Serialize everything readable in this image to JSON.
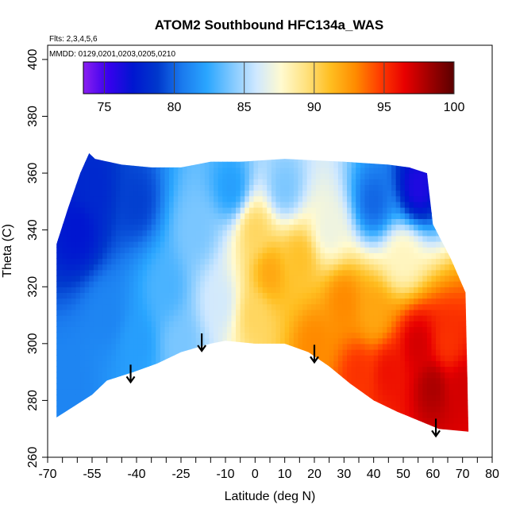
{
  "chart_data": {
    "type": "heatmap",
    "title": "ATOM2 Southbound HFC134a_WAS",
    "subtitle_flights": "Flts: 2,3,4,5,6",
    "subtitle_dates": "MMDD: 0129,0201,0203,0205,0210",
    "xlabel": "Latitude (deg N)",
    "ylabel": "Theta (C)",
    "xlim": [
      -70,
      80
    ],
    "ylim": [
      260,
      405
    ],
    "x_ticks": [
      "-70",
      "-55",
      "-40",
      "-25",
      "-10",
      "0",
      "10",
      "20",
      "30",
      "40",
      "50",
      "60",
      "70",
      "80"
    ],
    "x_tick_values": [
      -70,
      -55,
      -40,
      -25,
      -10,
      0,
      10,
      20,
      30,
      40,
      50,
      60,
      70,
      80
    ],
    "x_minor_ticks": [
      -65,
      -60,
      -50,
      -45,
      -35,
      -30,
      -20,
      -15,
      -5,
      5,
      15,
      25,
      35,
      45,
      55,
      65,
      75
    ],
    "y_ticks": [
      "260",
      "280",
      "300",
      "320",
      "340",
      "360",
      "380",
      "400"
    ],
    "y_tick_values": [
      260,
      280,
      300,
      320,
      340,
      360,
      380,
      400
    ],
    "colorbar": {
      "ticks": [
        "75",
        "80",
        "85",
        "90",
        "95",
        "100"
      ],
      "tick_values": [
        75,
        80,
        85,
        90,
        95,
        100
      ],
      "range": [
        73.5,
        100
      ],
      "gradient": [
        "#8a1ff0",
        "#3800ee",
        "#0016d0",
        "#0038cc",
        "#1a7aee",
        "#2aa6ff",
        "#7fc8ff",
        "#cfe8ff",
        "#fffad0",
        "#ffe280",
        "#ffbe20",
        "#ff8c00",
        "#ff3c00",
        "#e80000",
        "#a00000",
        "#5a0000"
      ]
    },
    "arrows_lat": [
      -42,
      -18,
      20,
      61
    ],
    "arrow_bases_theta": [
      287,
      298,
      294,
      268
    ],
    "field": {
      "upper_boundary": [
        [
          -67,
          335
        ],
        [
          -63,
          348
        ],
        [
          -59,
          360
        ],
        [
          -56,
          367
        ],
        [
          -54,
          365
        ],
        [
          -45,
          363
        ],
        [
          -35,
          362
        ],
        [
          -25,
          362
        ],
        [
          -15,
          364
        ],
        [
          -5,
          364
        ],
        [
          10,
          365
        ],
        [
          30,
          364
        ],
        [
          45,
          363
        ],
        [
          52,
          362
        ],
        [
          58,
          360
        ],
        [
          60,
          342
        ],
        [
          66,
          330
        ],
        [
          71,
          318
        ]
      ],
      "lower_boundary": [
        [
          -67,
          274
        ],
        [
          -55,
          282
        ],
        [
          -50,
          287
        ],
        [
          -41,
          290
        ],
        [
          -33,
          293
        ],
        [
          -25,
          297
        ],
        [
          -15,
          300
        ],
        [
          -10,
          301
        ],
        [
          0,
          300
        ],
        [
          10,
          300
        ],
        [
          18,
          297
        ],
        [
          25,
          292
        ],
        [
          32,
          286
        ],
        [
          40,
          280
        ],
        [
          48,
          276
        ],
        [
          55,
          273
        ],
        [
          62,
          270
        ],
        [
          72,
          269
        ]
      ],
      "value_samples": [
        {
          "lat": -62,
          "theta": 285,
          "value": 81
        },
        {
          "lat": -60,
          "theta": 340,
          "value": 77
        },
        {
          "lat": -55,
          "theta": 355,
          "value": 78
        },
        {
          "lat": -50,
          "theta": 310,
          "value": 81
        },
        {
          "lat": -40,
          "theta": 300,
          "value": 82
        },
        {
          "lat": -40,
          "theta": 350,
          "value": 79
        },
        {
          "lat": -30,
          "theta": 320,
          "value": 83
        },
        {
          "lat": -25,
          "theta": 300,
          "value": 84
        },
        {
          "lat": -20,
          "theta": 340,
          "value": 84
        },
        {
          "lat": -12,
          "theta": 315,
          "value": 86
        },
        {
          "lat": -8,
          "theta": 355,
          "value": 82
        },
        {
          "lat": 0,
          "theta": 340,
          "value": 90
        },
        {
          "lat": 0,
          "theta": 310,
          "value": 90
        },
        {
          "lat": 5,
          "theta": 325,
          "value": 92
        },
        {
          "lat": 10,
          "theta": 355,
          "value": 84
        },
        {
          "lat": 15,
          "theta": 330,
          "value": 91
        },
        {
          "lat": 20,
          "theta": 300,
          "value": 93
        },
        {
          "lat": 25,
          "theta": 340,
          "value": 87
        },
        {
          "lat": 30,
          "theta": 315,
          "value": 93
        },
        {
          "lat": 35,
          "theta": 290,
          "value": 95
        },
        {
          "lat": 40,
          "theta": 350,
          "value": 80
        },
        {
          "lat": 40,
          "theta": 310,
          "value": 92
        },
        {
          "lat": 45,
          "theta": 290,
          "value": 96
        },
        {
          "lat": 50,
          "theta": 330,
          "value": 88
        },
        {
          "lat": 55,
          "theta": 300,
          "value": 97
        },
        {
          "lat": 55,
          "theta": 355,
          "value": 76
        },
        {
          "lat": 60,
          "theta": 285,
          "value": 98
        },
        {
          "lat": 65,
          "theta": 300,
          "value": 95
        },
        {
          "lat": 70,
          "theta": 285,
          "value": 97
        }
      ]
    }
  }
}
